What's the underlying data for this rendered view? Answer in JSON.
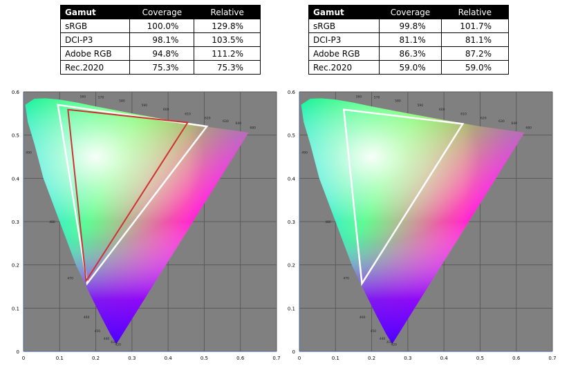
{
  "tables": [
    {
      "headers": [
        "Gamut",
        "Coverage",
        "Relative"
      ],
      "rows": [
        [
          "sRGB",
          "100.0%",
          "129.8%"
        ],
        [
          "DCI-P3",
          "98.1%",
          "103.5%"
        ],
        [
          "Adobe RGB",
          "94.8%",
          "111.2%"
        ],
        [
          "Rec.2020",
          "75.3%",
          "75.3%"
        ]
      ]
    },
    {
      "headers": [
        "Gamut",
        "Coverage",
        "Relative"
      ],
      "rows": [
        [
          "sRGB",
          "99.8%",
          "101.7%"
        ],
        [
          "DCI-P3",
          "81.1%",
          "81.1%"
        ],
        [
          "Adobe RGB",
          "86.3%",
          "87.2%"
        ],
        [
          "Rec.2020",
          "59.0%",
          "59.0%"
        ]
      ]
    }
  ],
  "chart_data": [
    {
      "type": "scatter",
      "xlim": [
        0,
        0.7
      ],
      "ylim": [
        0,
        0.6
      ],
      "x_ticks": [
        "0",
        "0.1",
        "0.2",
        "0.3",
        "0.4",
        "0.5",
        "0.6",
        "0.7"
      ],
      "y_ticks": [
        "0",
        "0.1",
        "0.2",
        "0.3",
        "0.4",
        "0.5",
        "0.6"
      ],
      "grid": true,
      "background": "#808080",
      "spectral_locus_uv": [
        [
          0.257,
          0.017
        ],
        [
          0.24,
          0.04
        ],
        [
          0.215,
          0.08
        ],
        [
          0.185,
          0.13
        ],
        [
          0.145,
          0.2
        ],
        [
          0.1,
          0.3
        ],
        [
          0.055,
          0.4
        ],
        [
          0.03,
          0.48
        ],
        [
          0.012,
          0.53
        ],
        [
          0.005,
          0.57
        ],
        [
          0.03,
          0.584
        ],
        [
          0.06,
          0.585
        ],
        [
          0.1,
          0.582
        ],
        [
          0.15,
          0.575
        ],
        [
          0.2,
          0.566
        ],
        [
          0.3,
          0.55
        ],
        [
          0.4,
          0.535
        ],
        [
          0.5,
          0.52
        ],
        [
          0.623,
          0.506
        ]
      ],
      "wavelength_labels": [
        {
          "text": "420",
          "u": 0.257,
          "v": 0.017
        },
        {
          "text": "430",
          "u": 0.245,
          "v": 0.022
        },
        {
          "text": "440",
          "u": 0.225,
          "v": 0.03
        },
        {
          "text": "450",
          "u": 0.2,
          "v": 0.048
        },
        {
          "text": "460",
          "u": 0.17,
          "v": 0.08
        },
        {
          "text": "470",
          "u": 0.125,
          "v": 0.17
        },
        {
          "text": "480",
          "u": 0.075,
          "v": 0.3
        },
        {
          "text": "490",
          "u": 0.01,
          "v": 0.46
        },
        {
          "text": "560",
          "u": 0.16,
          "v": 0.59
        },
        {
          "text": "570",
          "u": 0.21,
          "v": 0.588
        },
        {
          "text": "580",
          "u": 0.268,
          "v": 0.58
        },
        {
          "text": "590",
          "u": 0.33,
          "v": 0.57
        },
        {
          "text": "600",
          "u": 0.39,
          "v": 0.56
        },
        {
          "text": "610",
          "u": 0.45,
          "v": 0.55
        },
        {
          "text": "620",
          "u": 0.505,
          "v": 0.54
        },
        {
          "text": "630",
          "u": 0.555,
          "v": 0.533
        },
        {
          "text": "640",
          "u": 0.59,
          "v": 0.528
        },
        {
          "text": "680",
          "u": 0.63,
          "v": 0.518
        }
      ],
      "series": [
        {
          "color": "#ffffff",
          "points": [
            [
              0.095,
              0.57
            ],
            [
              0.507,
              0.52
            ],
            [
              0.176,
              0.157
            ]
          ]
        },
        {
          "color": "#cc3333",
          "points": [
            [
              0.123,
              0.559
            ],
            [
              0.454,
              0.529
            ],
            [
              0.173,
              0.163
            ]
          ]
        }
      ]
    },
    {
      "type": "scatter",
      "xlim": [
        0,
        0.7
      ],
      "ylim": [
        0,
        0.6
      ],
      "x_ticks": [
        "0",
        "0.1",
        "0.2",
        "0.3",
        "0.4",
        "0.5",
        "0.6",
        "0.7"
      ],
      "y_ticks": [
        "0",
        "0.1",
        "0.2",
        "0.3",
        "0.4",
        "0.5",
        "0.6"
      ],
      "grid": true,
      "background": "#808080",
      "spectral_locus_uv": [
        [
          0.257,
          0.017
        ],
        [
          0.24,
          0.04
        ],
        [
          0.215,
          0.08
        ],
        [
          0.185,
          0.13
        ],
        [
          0.145,
          0.2
        ],
        [
          0.1,
          0.3
        ],
        [
          0.055,
          0.4
        ],
        [
          0.03,
          0.48
        ],
        [
          0.012,
          0.53
        ],
        [
          0.005,
          0.57
        ],
        [
          0.03,
          0.584
        ],
        [
          0.06,
          0.585
        ],
        [
          0.1,
          0.582
        ],
        [
          0.15,
          0.575
        ],
        [
          0.2,
          0.566
        ],
        [
          0.3,
          0.55
        ],
        [
          0.4,
          0.535
        ],
        [
          0.5,
          0.52
        ],
        [
          0.623,
          0.506
        ]
      ],
      "wavelength_labels": [
        {
          "text": "420",
          "u": 0.257,
          "v": 0.017
        },
        {
          "text": "430",
          "u": 0.245,
          "v": 0.022
        },
        {
          "text": "440",
          "u": 0.225,
          "v": 0.03
        },
        {
          "text": "450",
          "u": 0.2,
          "v": 0.048
        },
        {
          "text": "460",
          "u": 0.17,
          "v": 0.08
        },
        {
          "text": "470",
          "u": 0.125,
          "v": 0.17
        },
        {
          "text": "480",
          "u": 0.075,
          "v": 0.3
        },
        {
          "text": "490",
          "u": 0.01,
          "v": 0.46
        },
        {
          "text": "560",
          "u": 0.16,
          "v": 0.59
        },
        {
          "text": "570",
          "u": 0.21,
          "v": 0.588
        },
        {
          "text": "580",
          "u": 0.268,
          "v": 0.58
        },
        {
          "text": "590",
          "u": 0.33,
          "v": 0.57
        },
        {
          "text": "600",
          "u": 0.39,
          "v": 0.56
        },
        {
          "text": "610",
          "u": 0.45,
          "v": 0.55
        },
        {
          "text": "620",
          "u": 0.505,
          "v": 0.54
        },
        {
          "text": "630",
          "u": 0.555,
          "v": 0.533
        },
        {
          "text": "640",
          "u": 0.59,
          "v": 0.528
        },
        {
          "text": "680",
          "u": 0.63,
          "v": 0.518
        }
      ],
      "series": [
        {
          "color": "#ffffff",
          "points": [
            [
              0.123,
              0.559
            ],
            [
              0.452,
              0.526
            ],
            [
              0.173,
              0.157
            ]
          ]
        }
      ]
    }
  ]
}
